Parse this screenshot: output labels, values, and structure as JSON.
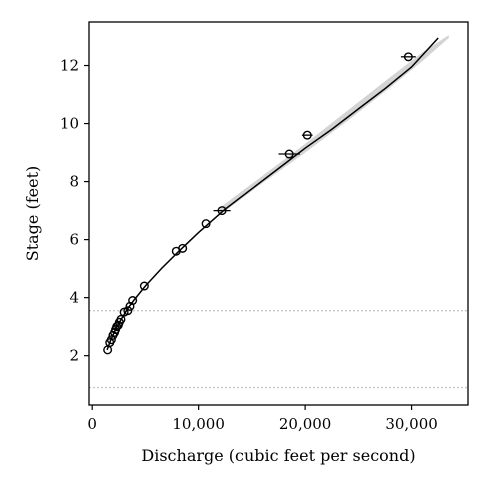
{
  "chart_data": {
    "type": "scatter",
    "xlabel": "Discharge (cubic feet per second)",
    "ylabel": "Stage (feet)",
    "xlim": [
      -300,
      35300
    ],
    "ylim": [
      0.3,
      13.5
    ],
    "x_ticks": [
      0,
      10000,
      20000,
      30000
    ],
    "x_tick_labels": [
      "0",
      "10,000",
      "20,000",
      "30,000"
    ],
    "y_ticks": [
      2,
      4,
      6,
      8,
      10,
      12
    ],
    "y_tick_labels": [
      "2",
      "4",
      "6",
      "8",
      "10",
      "12"
    ],
    "grid": false,
    "reference_lines_y": [
      3.55,
      0.9
    ],
    "rating_curve": {
      "x": [
        1400,
        1700,
        2000,
        2400,
        2800,
        3300,
        3900,
        5000,
        6500,
        8000,
        10000,
        12500,
        15000,
        17500,
        20000,
        22500,
        25000,
        27500,
        30000,
        32500
      ],
      "y": [
        2.2,
        2.5,
        2.75,
        3.05,
        3.3,
        3.6,
        3.9,
        4.4,
        5.0,
        5.55,
        6.25,
        7.05,
        7.75,
        8.45,
        9.15,
        9.8,
        10.5,
        11.2,
        11.95,
        12.95
      ]
    },
    "uncertainty_band": {
      "x": [
        12000,
        16000,
        20000,
        24000,
        28000,
        31000,
        33500
      ],
      "y_low": [
        6.85,
        7.95,
        9.0,
        10.1,
        11.25,
        12.15,
        12.95
      ],
      "y_high": [
        7.1,
        8.2,
        9.3,
        10.45,
        11.6,
        12.45,
        13.05
      ]
    },
    "measurements": [
      {
        "x": 1450,
        "y": 2.2,
        "xerr": 0
      },
      {
        "x": 1650,
        "y": 2.45,
        "xerr": 0
      },
      {
        "x": 1800,
        "y": 2.55,
        "xerr": 0
      },
      {
        "x": 1950,
        "y": 2.7,
        "xerr": 0
      },
      {
        "x": 2100,
        "y": 2.8,
        "xerr": 0
      },
      {
        "x": 2200,
        "y": 2.9,
        "xerr": 0
      },
      {
        "x": 2300,
        "y": 3.0,
        "xerr": 0
      },
      {
        "x": 2450,
        "y": 3.05,
        "xerr": 0
      },
      {
        "x": 2550,
        "y": 3.15,
        "xerr": 0
      },
      {
        "x": 2700,
        "y": 3.25,
        "xerr": 0
      },
      {
        "x": 3000,
        "y": 3.5,
        "xerr": 0
      },
      {
        "x": 3350,
        "y": 3.55,
        "xerr": 0
      },
      {
        "x": 3550,
        "y": 3.7,
        "xerr": 0
      },
      {
        "x": 3800,
        "y": 3.9,
        "xerr": 0
      },
      {
        "x": 4900,
        "y": 4.4,
        "xerr": 0
      },
      {
        "x": 7900,
        "y": 5.6,
        "xerr": 0
      },
      {
        "x": 8500,
        "y": 5.7,
        "xerr": 0
      },
      {
        "x": 10700,
        "y": 6.55,
        "xerr": 0
      },
      {
        "x": 12200,
        "y": 7.0,
        "xerr": 800
      },
      {
        "x": 18500,
        "y": 8.95,
        "xerr": 1000
      },
      {
        "x": 20200,
        "y": 9.6,
        "xerr": 500
      },
      {
        "x": 29700,
        "y": 12.3,
        "xerr": 700
      }
    ],
    "colors": {
      "points": "#000000",
      "curve": "#000000",
      "band": "#d4d4d4",
      "reference_line": "#c8c8c8"
    }
  }
}
